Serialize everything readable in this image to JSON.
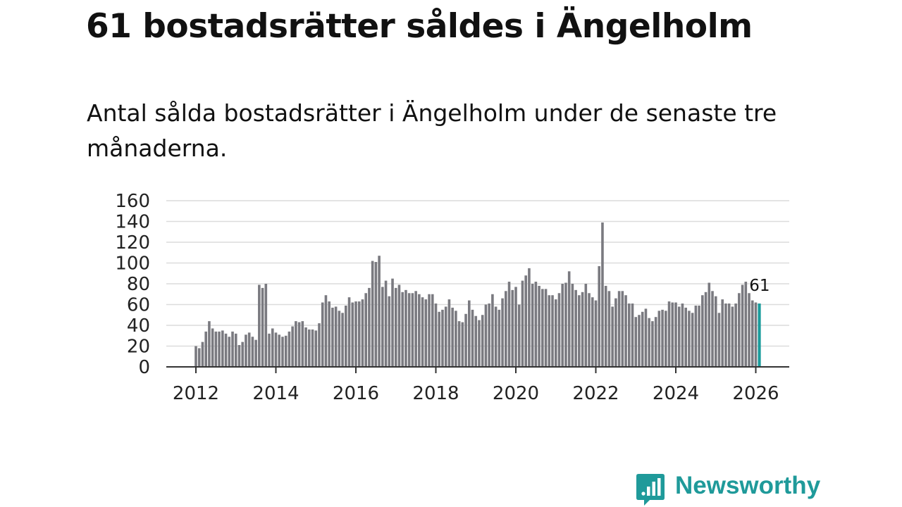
{
  "title": "61 bostadsrätter såldes i Ängelholm",
  "subtitle": "Antal sålda bostadsrätter i Ängelholm under de senaste tre månaderna.",
  "brand": {
    "name": "Newsworthy",
    "color": "#1f9a9a",
    "icon": "newsworthy-chart-bubble-icon"
  },
  "chart_data": {
    "type": "bar",
    "title": "",
    "xlabel": "",
    "ylabel": "",
    "ylim": [
      0,
      160
    ],
    "y_ticks": [
      0,
      20,
      40,
      60,
      80,
      100,
      120,
      140,
      160
    ],
    "x_ticks": [
      "2012",
      "2014",
      "2016",
      "2018",
      "2020",
      "2022",
      "2024",
      "2026"
    ],
    "x_start": "2012-01",
    "frequency": "monthly",
    "grid": true,
    "bar_color": "#7a7a80",
    "highlight_color": "#1a9c9c",
    "highlight_last": true,
    "value_label": "61",
    "values": [
      20,
      18,
      24,
      34,
      44,
      37,
      34,
      34,
      35,
      32,
      29,
      34,
      32,
      21,
      24,
      31,
      33,
      29,
      26,
      79,
      76,
      80,
      32,
      37,
      33,
      31,
      29,
      30,
      34,
      39,
      44,
      43,
      44,
      38,
      36,
      36,
      35,
      42,
      62,
      69,
      63,
      57,
      58,
      54,
      52,
      59,
      67,
      62,
      63,
      63,
      65,
      71,
      76,
      102,
      101,
      107,
      77,
      83,
      68,
      85,
      76,
      79,
      72,
      74,
      71,
      71,
      73,
      70,
      67,
      65,
      70,
      70,
      61,
      53,
      55,
      58,
      65,
      57,
      54,
      44,
      43,
      51,
      64,
      55,
      49,
      45,
      50,
      60,
      61,
      70,
      58,
      55,
      66,
      73,
      82,
      74,
      77,
      60,
      83,
      88,
      95,
      80,
      82,
      78,
      75,
      75,
      69,
      69,
      65,
      71,
      80,
      81,
      92,
      80,
      74,
      69,
      72,
      80,
      71,
      67,
      64,
      97,
      139,
      78,
      73,
      58,
      66,
      73,
      73,
      69,
      61,
      61,
      48,
      50,
      53,
      56,
      47,
      44,
      48,
      54,
      55,
      54,
      63,
      62,
      62,
      58,
      61,
      57,
      54,
      52,
      59,
      59,
      69,
      72,
      81,
      73,
      68,
      52,
      65,
      61,
      61,
      58,
      61,
      71,
      79,
      82,
      71,
      64,
      62,
      61
    ]
  }
}
